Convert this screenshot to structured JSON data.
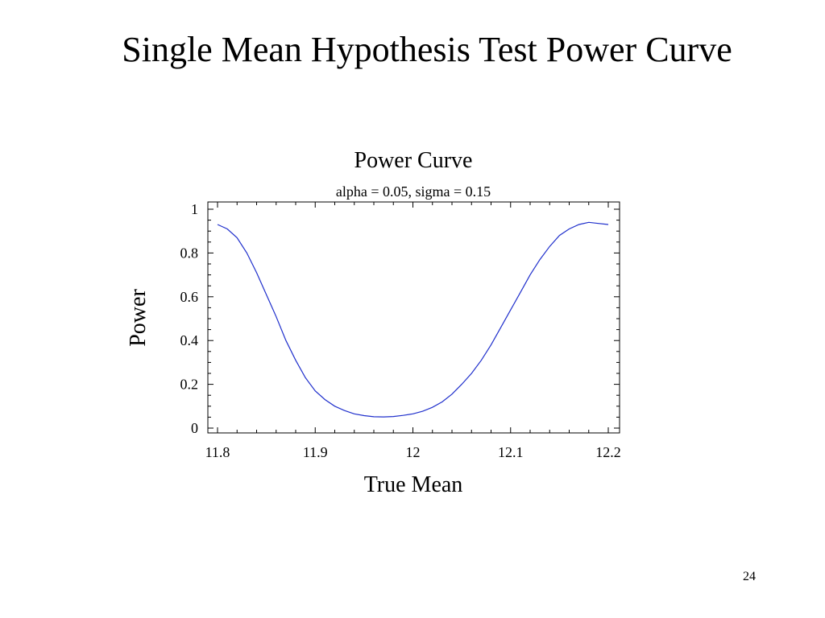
{
  "slide": {
    "title": "Single Mean Hypothesis Test Power Curve",
    "page_number": "24"
  },
  "chart_data": {
    "type": "line",
    "title": "Power Curve",
    "subtitle": "alpha = 0.05, sigma = 0.15",
    "xlabel": "True Mean",
    "ylabel": "Power",
    "xlim": [
      11.8,
      12.2
    ],
    "ylim": [
      0,
      1
    ],
    "x_ticks": [
      "11.8",
      "11.9",
      "12",
      "12.1",
      "12.2"
    ],
    "y_ticks": [
      "0",
      "0.2",
      "0.4",
      "0.6",
      "0.8",
      "1"
    ],
    "grid": false,
    "line_color": "#1f2fcc",
    "x": [
      11.8,
      11.81,
      11.82,
      11.83,
      11.84,
      11.85,
      11.86,
      11.87,
      11.88,
      11.89,
      11.9,
      11.91,
      11.92,
      11.93,
      11.94,
      11.95,
      11.96,
      11.97,
      11.98,
      11.99,
      12.0,
      12.01,
      12.02,
      12.03,
      12.04,
      12.05,
      12.06,
      12.07,
      12.08,
      12.09,
      12.1,
      12.11,
      12.12,
      12.13,
      12.14,
      12.15,
      12.16,
      12.17,
      12.18,
      12.19,
      12.2
    ],
    "values": [
      0.93,
      0.91,
      0.87,
      0.8,
      0.71,
      0.61,
      0.51,
      0.4,
      0.31,
      0.23,
      0.17,
      0.13,
      0.1,
      0.08,
      0.065,
      0.057,
      0.052,
      0.051,
      0.053,
      0.058,
      0.065,
      0.077,
      0.095,
      0.12,
      0.155,
      0.2,
      0.25,
      0.31,
      0.38,
      0.46,
      0.54,
      0.62,
      0.7,
      0.77,
      0.83,
      0.88,
      0.91,
      0.93,
      0.94,
      0.935,
      0.93
    ]
  }
}
